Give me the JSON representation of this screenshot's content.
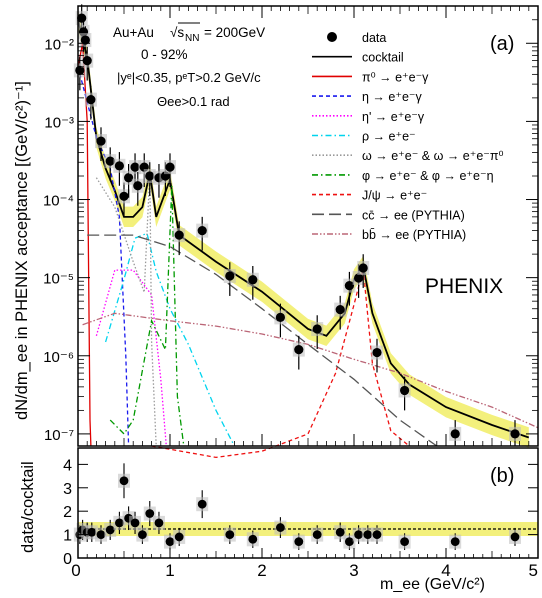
{
  "chart_data": [
    {
      "panel_label": "(a)",
      "type": "line",
      "y_scale": "log",
      "xlim": [
        0,
        5
      ],
      "ylim": [
        7e-08,
        0.03
      ],
      "ylabel": "dN/dm_ee in PHENIX acceptance [(GeV/c²)⁻¹]",
      "x_ticks": [
        "0",
        "1",
        "2",
        "3",
        "4",
        "5"
      ],
      "y_tick_labels": [
        "10⁻⁷",
        "10⁻⁶",
        "10⁻⁵",
        "10⁻⁴",
        "10⁻³",
        "10⁻²"
      ],
      "legend_position": "top-right",
      "annotations": {
        "system_a": "Au+Au",
        "system_b": "= 200GeV",
        "sqrt": "√s",
        "sqrt_sub": "NN",
        "centrality": "0 - 92%",
        "cut_rapidity": "|yᵉ|<0.35, pᵉT>0.2 GeV/c",
        "cut_angle": "Θee>0.1 rad",
        "experiment": "PHENIX"
      },
      "legend": [
        {
          "label": "data",
          "color": "#000000",
          "style": "marker"
        },
        {
          "label": "cocktail",
          "color": "#000000",
          "style": "solid"
        },
        {
          "label": "π⁰ → e⁺e⁻γ",
          "color": "#e00000",
          "style": "solid"
        },
        {
          "label": "η → e⁺e⁻γ",
          "color": "#1a1aee",
          "style": "dashed"
        },
        {
          "label": "η' → e⁺e⁻γ",
          "color": "#ff00ff",
          "style": "dotted"
        },
        {
          "label": "ρ → e⁺e⁻",
          "color": "#00d4ee",
          "style": "dashdot"
        },
        {
          "label": "ω → e⁺e⁻ & ω → e⁺e⁻π⁰",
          "color": "#999999",
          "style": "dotted"
        },
        {
          "label": "φ → e⁺e⁻ & φ → e⁺e⁻η",
          "color": "#009900",
          "style": "dashdot"
        },
        {
          "label": "J/ψ → e⁺e⁻",
          "color": "#ee1111",
          "style": "dashed"
        },
        {
          "label": "cc̄ → ee (PYTHIA)",
          "color": "#555555",
          "style": "longdash"
        },
        {
          "label": "bb̄ → ee (PYTHIA)",
          "color": "#bb6677",
          "style": "dashdotdot"
        }
      ],
      "series": [
        {
          "name": "data",
          "x": [
            0.02,
            0.04,
            0.06,
            0.08,
            0.1,
            0.14,
            0.25,
            0.35,
            0.45,
            0.5,
            0.55,
            0.62,
            0.65,
            0.72,
            0.78,
            0.88,
            0.95,
            1.0,
            1.1,
            1.35,
            1.65,
            1.9,
            2.2,
            2.4,
            2.6,
            2.85,
            2.95,
            3.05,
            3.1,
            3.25,
            3.55,
            4.1,
            4.75
          ],
          "y": [
            0.0045,
            0.021,
            0.014,
            0.011,
            0.006,
            0.0019,
            0.00056,
            0.00031,
            0.00027,
            0.00011,
            0.00019,
            0.00026,
            0.00015,
            0.00026,
            0.0002,
            0.00019,
            0.0002,
            0.00026,
            3.5e-05,
            4e-05,
            1.05e-05,
            9.4e-06,
            3.1e-06,
            1.2e-06,
            2.2e-06,
            3.9e-06,
            7.9e-06,
            9.9e-06,
            1.33e-05,
            1.1e-06,
            3.6e-07,
            1e-07,
            1e-07
          ]
        },
        {
          "name": "cocktail",
          "x": [
            0.0,
            0.1,
            0.2,
            0.3,
            0.4,
            0.5,
            0.6,
            0.7,
            0.78,
            0.85,
            1.0,
            1.1,
            1.5,
            2.0,
            2.5,
            2.7,
            2.9,
            3.0,
            3.1,
            3.2,
            3.4,
            3.6,
            4.0,
            4.5,
            4.9
          ],
          "y": [
            0.02,
            0.0065,
            0.00062,
            0.00025,
            0.00013,
            6e-05,
            6e-05,
            8e-05,
            0.00022,
            6e-05,
            0.00018,
            3.5e-05,
            1.6e-05,
            6.6e-06,
            2.2e-06,
            1.8e-06,
            3.5e-06,
            9.5e-06,
            1.4e-05,
            3.5e-06,
            8e-07,
            4.3e-07,
            2.2e-07,
            1.3e-07,
            9e-08
          ]
        },
        {
          "name": "π⁰ → e⁺e⁻γ",
          "x": [
            0.0,
            0.05,
            0.1,
            0.13,
            0.14
          ],
          "y": [
            0.005,
            0.01,
            0.001,
            1.5e-07,
            7e-08
          ]
        },
        {
          "name": "η → e⁺e⁻γ",
          "x": [
            0.0,
            0.2,
            0.35,
            0.45,
            0.52,
            0.55
          ],
          "y": [
            0.005,
            0.00062,
            0.00025,
            6e-05,
            1e-06,
            7e-08
          ]
        },
        {
          "name": "η' → e⁺e⁻γ",
          "x": [
            0.2,
            0.4,
            0.6,
            0.8,
            0.9,
            0.96
          ],
          "y": [
            1.8e-06,
            1.25e-05,
            1.25e-05,
            6e-06,
            5e-07,
            7e-08
          ]
        },
        {
          "name": "ρ → e⁺e⁻",
          "x": [
            0.3,
            0.5,
            0.62,
            0.75,
            0.85,
            1.0,
            1.2,
            1.5,
            1.7
          ],
          "y": [
            1.5e-06,
            9.5e-06,
            3.2e-05,
            3.7e-05,
            1.2e-05,
            4e-06,
            1.4e-06,
            2e-07,
            7e-08
          ]
        },
        {
          "name": "ω → e⁺e⁻ & ω → e⁺e⁻π⁰",
          "x": [
            0.2,
            0.4,
            0.6,
            0.72,
            0.78,
            0.8,
            0.85
          ],
          "y": [
            0.00019,
            8e-05,
            1.6e-05,
            6.5e-06,
            0.00022,
            1.5e-06,
            7e-08
          ]
        },
        {
          "name": "φ → e⁺e⁻ & φ → e⁺e⁻η",
          "x": [
            0.35,
            0.5,
            0.6,
            0.8,
            0.95,
            1.02,
            1.08,
            1.15
          ],
          "y": [
            1.5e-07,
            1e-07,
            1.5e-07,
            2.8e-06,
            1.2e-06,
            0.00015,
            3e-07,
            7e-08
          ]
        },
        {
          "name": "J/ψ → e⁺e⁻",
          "x": [
            0.8,
            1.5,
            2.0,
            2.5,
            2.8,
            3.0,
            3.1,
            3.2,
            3.4,
            3.6
          ],
          "y": [
            7e-08,
            5e-08,
            6e-08,
            1e-07,
            6e-07,
            4.5e-06,
            1.3e-05,
            8e-07,
            1.1e-07,
            7e-08
          ]
        },
        {
          "name": "cc̄ → ee (PYTHIA)",
          "x": [
            0.1,
            0.6,
            1.0,
            1.5,
            2.0,
            2.5,
            3.0,
            3.5,
            3.9
          ],
          "y": [
            3.5e-05,
            3.5e-05,
            2.5e-05,
            1.1e-05,
            4e-06,
            1.4e-06,
            5e-07,
            1.5e-07,
            7e-08
          ]
        },
        {
          "name": "bb̄ → ee (PYTHIA)",
          "x": [
            0.05,
            0.4,
            1.0,
            1.5,
            2.0,
            2.5,
            3.0,
            3.5,
            4.0,
            4.5,
            5.0
          ],
          "y": [
            2.5e-06,
            3.5e-06,
            2.8e-06,
            2.4e-06,
            1.9e-06,
            1.4e-06,
            9e-07,
            6e-07,
            3.5e-07,
            2.2e-07,
            1.2e-07
          ]
        }
      ]
    },
    {
      "panel_label": "(b)",
      "type": "scatter",
      "xlabel": "m_ee (GeV/c²)",
      "ylabel": "data/cocktail",
      "xlim": [
        0,
        5
      ],
      "ylim": [
        0,
        4.7
      ],
      "x_ticks": [
        "0",
        "1",
        "2",
        "3",
        "4",
        "5"
      ],
      "y_ticks": [
        "0",
        "1",
        "2",
        "3",
        "4"
      ],
      "reference_line": 1,
      "series": [
        {
          "name": "data/cocktail",
          "x": [
            0.02,
            0.05,
            0.1,
            0.15,
            0.25,
            0.35,
            0.45,
            0.5,
            0.55,
            0.62,
            0.7,
            0.78,
            0.88,
            1.0,
            1.1,
            1.35,
            1.65,
            1.9,
            2.2,
            2.4,
            2.6,
            2.85,
            2.95,
            3.05,
            3.15,
            3.25,
            3.55,
            4.1,
            4.75
          ],
          "y": [
            1.0,
            1.2,
            1.1,
            1.1,
            1.0,
            1.2,
            1.5,
            3.3,
            1.7,
            1.5,
            1.0,
            1.9,
            1.5,
            0.7,
            0.9,
            2.3,
            1.0,
            0.8,
            1.3,
            0.7,
            1.0,
            1.1,
            0.7,
            1.0,
            1.0,
            1.0,
            0.7,
            0.7,
            0.9
          ]
        }
      ]
    }
  ]
}
